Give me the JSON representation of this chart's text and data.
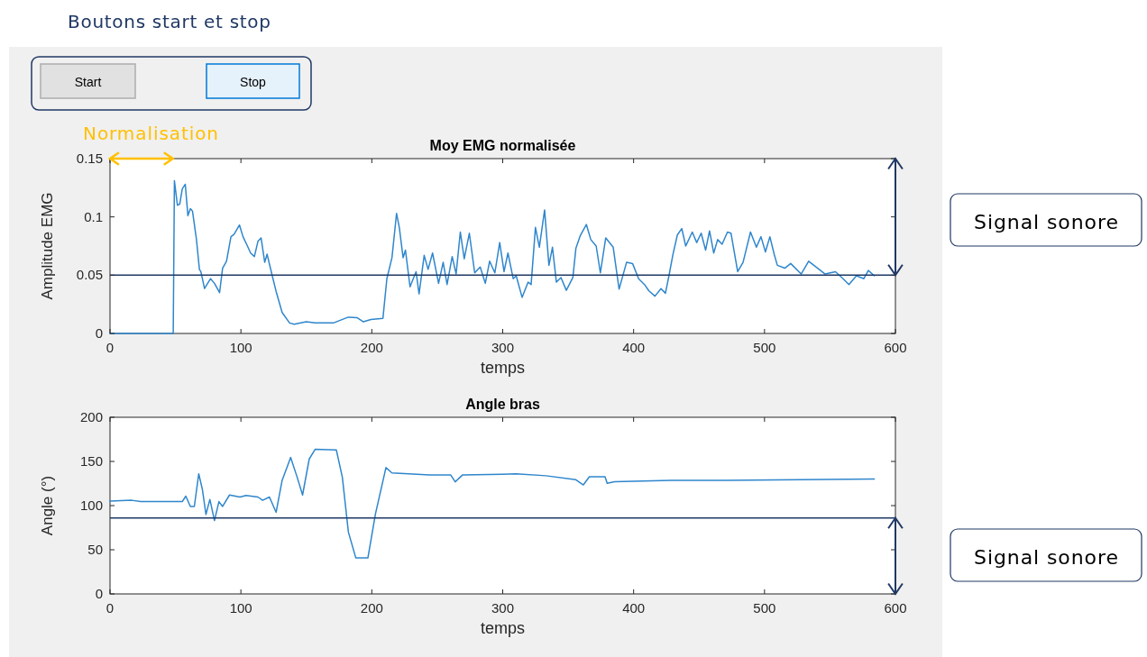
{
  "chart_data": [
    {
      "type": "line",
      "title": "Moy EMG normalisée",
      "xlabel": "temps",
      "ylabel": "Amplitude EMG",
      "xlim": [
        0,
        600
      ],
      "xticks": [
        0,
        100,
        200,
        300,
        400,
        500,
        600
      ],
      "ylim": [
        0,
        0.15
      ],
      "yticks": [
        0,
        0.05,
        0.1,
        0.15
      ],
      "ref_lines": [
        {
          "axis": "y",
          "value": 0.05,
          "color": "#1f3864"
        }
      ],
      "annotations": [
        "Boutons start et stop",
        "Start",
        "Stop",
        "Normalisation",
        "Signal sonore"
      ],
      "series": [
        {
          "color": "#2f86cc",
          "x": [
            0,
            48.3,
            49.2,
            51.5,
            53.3,
            55.2,
            57.5,
            59.5,
            61.4,
            63,
            66,
            68.3,
            69.4,
            72.2,
            76.8,
            79.8,
            83.7,
            86,
            89,
            92.4,
            94.7,
            98.9,
            101.6,
            105,
            107.4,
            110.3,
            113,
            115.4,
            118.2,
            120,
            123.4,
            126.9,
            131.5,
            137.2,
            140.7,
            149.9,
            156.8,
            170.6,
            182,
            188.9,
            193.6,
            199.3,
            208.5,
            211.5,
            215.4,
            218.9,
            221,
            223.9,
            225.7,
            229.2,
            233.8,
            236.1,
            240,
            243,
            246.4,
            251,
            254.5,
            257.5,
            261.4,
            264.4,
            267.6,
            270.6,
            274.5,
            278.6,
            282.8,
            286.7,
            290,
            294,
            297.7,
            301,
            304,
            308,
            310.3,
            314.8,
            319.4,
            321.7,
            325,
            328,
            332,
            335.3,
            338,
            341,
            344.5,
            348.6,
            353.6,
            355.9,
            359.3,
            363.9,
            367.3,
            371.4,
            374.6,
            378.7,
            384.4,
            388.9,
            394.6,
            399.2,
            403.8,
            408.3,
            411.7,
            416.3,
            420.9,
            424.3,
            427,
            430,
            433.4,
            436.8,
            439.8,
            444.8,
            448.2,
            451.6,
            455,
            458,
            461.2,
            464.2,
            467.6,
            471.7,
            474.4,
            479.5,
            483.6,
            489.3,
            493.8,
            497.3,
            500.7,
            504.1,
            507.5,
            509.8,
            515.5,
            520,
            528,
            533.7,
            540.6,
            546.3,
            554.2,
            560,
            564.5,
            570.2,
            575.9,
            579.3,
            583.9
          ],
          "values": [
            0,
            0,
            0.131,
            0.11,
            0.111,
            0.124,
            0.128,
            0.101,
            0.107,
            0.105,
            0.081,
            0.055,
            0.053,
            0.0385,
            0.047,
            0.043,
            0.035,
            0.056,
            0.062,
            0.083,
            0.085,
            0.093,
            0.083,
            0.075,
            0.069,
            0.066,
            0.079,
            0.082,
            0.061,
            0.068,
            0.052,
            0.036,
            0.018,
            0.009,
            0.008,
            0.01,
            0.009,
            0.009,
            0.014,
            0.0135,
            0.01,
            0.012,
            0.013,
            0.047,
            0.065,
            0.103,
            0.091,
            0.065,
            0.0715,
            0.04,
            0.053,
            0.034,
            0.067,
            0.055,
            0.069,
            0.043,
            0.061,
            0.042,
            0.066,
            0.051,
            0.087,
            0.064,
            0.086,
            0.052,
            0.057,
            0.043,
            0.062,
            0.052,
            0.078,
            0.053,
            0.069,
            0.047,
            0.0495,
            0.031,
            0.044,
            0.042,
            0.091,
            0.074,
            0.106,
            0.0585,
            0.074,
            0.044,
            0.048,
            0.037,
            0.048,
            0.073,
            0.084,
            0.0935,
            0.0805,
            0.075,
            0.052,
            0.082,
            0.074,
            0.038,
            0.061,
            0.06,
            0.047,
            0.042,
            0.0365,
            0.032,
            0.0385,
            0.0345,
            0.0495,
            0.0675,
            0.0845,
            0.09,
            0.075,
            0.087,
            0.078,
            0.086,
            0.0715,
            0.088,
            0.069,
            0.0805,
            0.0765,
            0.087,
            0.086,
            0.053,
            0.061,
            0.087,
            0.074,
            0.083,
            0.07,
            0.083,
            0.0675,
            0.0585,
            0.056,
            0.06,
            0.051,
            0.062,
            0.056,
            0.051,
            0.053,
            0.047,
            0.042,
            0.0495,
            0.047,
            0.054,
            0.0495
          ]
        }
      ]
    },
    {
      "type": "line",
      "title": "Angle bras",
      "xlabel": "temps",
      "ylabel": "Angle (°)",
      "xlim": [
        0,
        600
      ],
      "xticks": [
        0,
        100,
        200,
        300,
        400,
        500,
        600
      ],
      "ylim": [
        0,
        200
      ],
      "yticks": [
        0,
        50,
        100,
        150,
        200
      ],
      "ref_lines": [
        {
          "axis": "y",
          "value": 86,
          "color": "#1f3864"
        }
      ],
      "annotations": [
        "Signal sonore"
      ],
      "series": [
        {
          "color": "#2f86cc",
          "x": [
            0,
            16.6,
            23.4,
            55.2,
            57.9,
            61.4,
            64.4,
            67.8,
            70.6,
            73.3,
            76.3,
            79.8,
            83.2,
            86,
            91.3,
            99.3,
            103.9,
            113,
            116.6,
            121.8,
            126.9,
            131.5,
            138,
            143,
            147.1,
            152.2,
            156.8,
            172.9,
            177.5,
            182.1,
            187.8,
            197,
            202.8,
            210.8,
            215.4,
            244.1,
            260.2,
            263.7,
            269.4,
            299.3,
            310.3,
            333,
            355.9,
            361.6,
            366.2,
            378.2,
            379.8,
            385.5,
            428.8,
            469.9,
            583.9
          ],
          "values": [
            105,
            106,
            104.5,
            104.5,
            110.7,
            99,
            99,
            136,
            118,
            90,
            107,
            83,
            104.5,
            99,
            112,
            109.7,
            111.4,
            109.7,
            106,
            109.7,
            92.4,
            128.6,
            154.5,
            132,
            112,
            152.8,
            163.8,
            163,
            132,
            70,
            40.7,
            40.7,
            90.7,
            143,
            137,
            134.8,
            134.8,
            126.9,
            134.8,
            135.5,
            136,
            133.8,
            129.3,
            123.4,
            132.7,
            132.7,
            125.2,
            127,
            128.6,
            128.6,
            130
          ]
        }
      ]
    }
  ]
}
